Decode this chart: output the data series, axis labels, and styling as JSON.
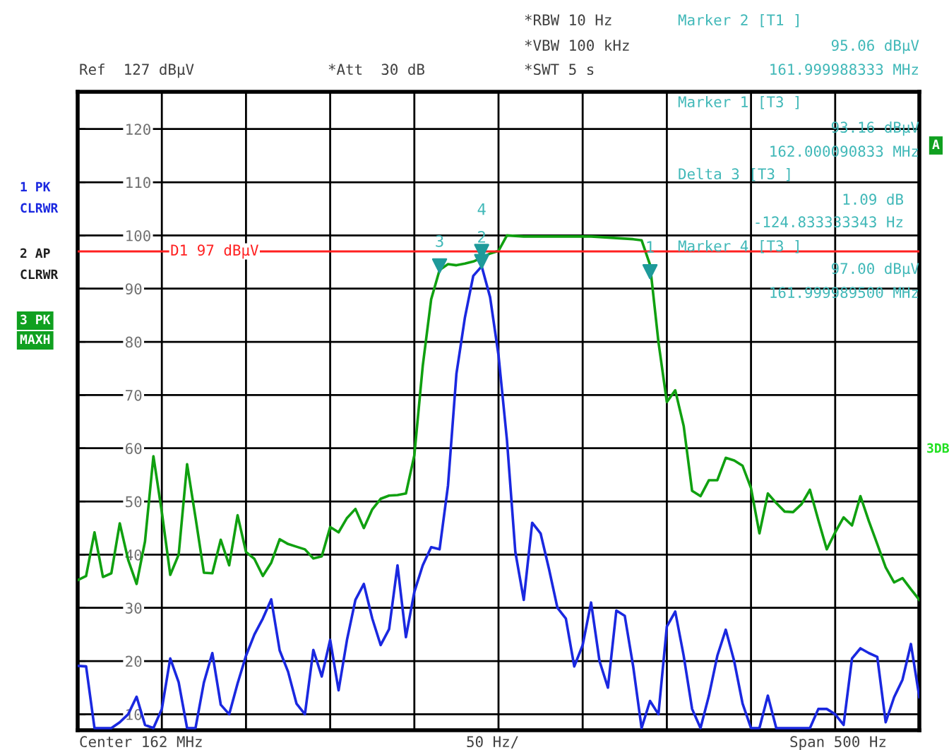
{
  "chart_data": {
    "type": "line",
    "categories": [
      null,
      null,
      null,
      null,
      null,
      null,
      null,
      null,
      null,
      null,
      null,
      null,
      null,
      null,
      null,
      null,
      null,
      null,
      null,
      null,
      null,
      null,
      null,
      null,
      null,
      null,
      null,
      null,
      null,
      null,
      null,
      null,
      null,
      null,
      null,
      null,
      null,
      null,
      null,
      null,
      null,
      null,
      null,
      null,
      null,
      null,
      null,
      null,
      null,
      null,
      null,
      null,
      null,
      null,
      null,
      null,
      null,
      null,
      null,
      null,
      null,
      null,
      null,
      null,
      null,
      null,
      null,
      null,
      null,
      null,
      null,
      null,
      null,
      null,
      null,
      null,
      null,
      null,
      null,
      null,
      null,
      null,
      null,
      null,
      null,
      null,
      null,
      null,
      null,
      null,
      null,
      null,
      null,
      null,
      null,
      null,
      null,
      null,
      null,
      null,
      null
    ],
    "ylim": [
      7,
      127
    ],
    "yticks": [
      10,
      20,
      30,
      40,
      50,
      60,
      70,
      80,
      90,
      100,
      110,
      120
    ],
    "tick_labels": "y",
    "grid": true,
    "legend": false,
    "marker": "none",
    "line_style": "solid",
    "ref_lines": [
      {
        "axis": "y",
        "value": 97,
        "label": "D1 97 dBµV",
        "color": "#ff2020"
      }
    ],
    "series": [
      {
        "color": "#10a010",
        "values": [
          35.2,
          36,
          44.2,
          35.8,
          36.5,
          45.9,
          39,
          34.5,
          42.5,
          58.5,
          48,
          36.2,
          40,
          57,
          47,
          36.6,
          36.5,
          42.8,
          38,
          47.4,
          40.5,
          39.2,
          36,
          38.5,
          42.9,
          42,
          41.5,
          41,
          39.3,
          39.7,
          45.2,
          44.2,
          46.9,
          48.6,
          45,
          48.5,
          50.5,
          51.1,
          51.2,
          51.5,
          58.7,
          75.5,
          88,
          93.5,
          94.6,
          94.4,
          94.7,
          95.1,
          95.8,
          96.6,
          97.1,
          100,
          99.9,
          99.8,
          99.8,
          99.8,
          99.8,
          99.8,
          99.8,
          99.8,
          99.8,
          99.8,
          99.7,
          99.6,
          99.5,
          99.4,
          99.3,
          99.1,
          94.5,
          80,
          68.7,
          70.9,
          64.2,
          52,
          51,
          54,
          54,
          58.2,
          57.7,
          56.7,
          52.5,
          44,
          51.5,
          49.7,
          48.1,
          48,
          49.5,
          52.2,
          46.5,
          41,
          44.2,
          47,
          45.5,
          51,
          46.3,
          42,
          37.6,
          34.8,
          35.6,
          33.5,
          31.5
        ]
      },
      {
        "color": "#1a28e0",
        "values": [
          19.1,
          19,
          7.4,
          7.4,
          7.4,
          8.5,
          10,
          13.3,
          8,
          7.4,
          11,
          20.5,
          16,
          7.4,
          7.4,
          16,
          21.5,
          11.8,
          10,
          15.8,
          21,
          25,
          28,
          31.6,
          22,
          18,
          12,
          10,
          22.1,
          17.1,
          24,
          14.5,
          24,
          31.5,
          34.5,
          28,
          23,
          26,
          38,
          24.5,
          33,
          38,
          41.4,
          41,
          53,
          74,
          84.5,
          92.4,
          94.2,
          88.4,
          77.5,
          61.6,
          40.5,
          31.5,
          46,
          44,
          37.3,
          30,
          28,
          19,
          23,
          31,
          20,
          15,
          29.5,
          28.5,
          19,
          7.4,
          12.5,
          10,
          26.5,
          29.3,
          21,
          11,
          7.4,
          13.5,
          21,
          25.9,
          20,
          12,
          7.4,
          7.4,
          13.5,
          7.4,
          7.4,
          7.4,
          7.4,
          7.4,
          11,
          11,
          10,
          8,
          20.5,
          22.4,
          21.5,
          20.8,
          8.5,
          13.2,
          16.5,
          23.2,
          13.2
        ]
      },
      {
        "type": "scatter",
        "marker": "triangle",
        "color": "#1e9a9a",
        "name": "1",
        "values": [
          null,
          null,
          null,
          null,
          null,
          null,
          null,
          null,
          null,
          null,
          null,
          null,
          null,
          null,
          null,
          null,
          null,
          null,
          null,
          null,
          null,
          null,
          null,
          null,
          null,
          null,
          null,
          null,
          null,
          null,
          null,
          null,
          null,
          null,
          null,
          null,
          null,
          null,
          null,
          null,
          null,
          null,
          null,
          null,
          null,
          null,
          null,
          null,
          null,
          null,
          null,
          null,
          null,
          null,
          null,
          null,
          null,
          null,
          null,
          null,
          null,
          null,
          null,
          null,
          null,
          null,
          null,
          null,
          93.2,
          null,
          null,
          null,
          null,
          null,
          null,
          null,
          null,
          null,
          null,
          null,
          null,
          null,
          null,
          null,
          null,
          null,
          null,
          null,
          null,
          null,
          null,
          null,
          null,
          null,
          null,
          null,
          null,
          null,
          null,
          null,
          null
        ]
      },
      {
        "type": "scatter",
        "marker": "triangle",
        "color": "#1e9a9a",
        "name": "2",
        "values": [
          null,
          null,
          null,
          null,
          null,
          null,
          null,
          null,
          null,
          null,
          null,
          null,
          null,
          null,
          null,
          null,
          null,
          null,
          null,
          null,
          null,
          null,
          null,
          null,
          null,
          null,
          null,
          null,
          null,
          null,
          null,
          null,
          null,
          null,
          null,
          null,
          null,
          null,
          null,
          null,
          null,
          null,
          null,
          null,
          null,
          null,
          null,
          null,
          95.1,
          null,
          null,
          null,
          null,
          null,
          null,
          null,
          null,
          null,
          null,
          null,
          null,
          null,
          null,
          null,
          null,
          null,
          null,
          null,
          null,
          null,
          null,
          null,
          null,
          null,
          null,
          null,
          null,
          null,
          null,
          null,
          null,
          null,
          null,
          null,
          null,
          null,
          null,
          null,
          null,
          null,
          null,
          null,
          null,
          null,
          null,
          null,
          null,
          null,
          null,
          null,
          null
        ]
      },
      {
        "type": "scatter",
        "marker": "triangle",
        "color": "#1e9a9a",
        "name": "3",
        "values": [
          null,
          null,
          null,
          null,
          null,
          null,
          null,
          null,
          null,
          null,
          null,
          null,
          null,
          null,
          null,
          null,
          null,
          null,
          null,
          null,
          null,
          null,
          null,
          null,
          null,
          null,
          null,
          null,
          null,
          null,
          null,
          null,
          null,
          null,
          null,
          null,
          null,
          null,
          null,
          null,
          null,
          null,
          null,
          94.3,
          null,
          null,
          null,
          null,
          null,
          null,
          null,
          null,
          null,
          null,
          null,
          null,
          null,
          null,
          null,
          null,
          null,
          null,
          null,
          null,
          null,
          null,
          null,
          null,
          null,
          null,
          null,
          null,
          null,
          null,
          null,
          null,
          null,
          null,
          null,
          null,
          null,
          null,
          null,
          null,
          null,
          null,
          null,
          null,
          null,
          null,
          null,
          null,
          null,
          null,
          null,
          null,
          null,
          null,
          null,
          null,
          null
        ]
      },
      {
        "type": "scatter",
        "marker": "triangle",
        "color": "#1e9a9a",
        "name": "4",
        "values": [
          null,
          null,
          null,
          null,
          null,
          null,
          null,
          null,
          null,
          null,
          null,
          null,
          null,
          null,
          null,
          null,
          null,
          null,
          null,
          null,
          null,
          null,
          null,
          null,
          null,
          null,
          null,
          null,
          null,
          null,
          null,
          null,
          null,
          null,
          null,
          null,
          null,
          null,
          null,
          null,
          null,
          null,
          null,
          null,
          null,
          null,
          null,
          null,
          97.0,
          null,
          null,
          null,
          null,
          null,
          null,
          null,
          null,
          null,
          null,
          null,
          null,
          null,
          null,
          null,
          null,
          null,
          null,
          null,
          null,
          null,
          null,
          null,
          null,
          null,
          null,
          null,
          null,
          null,
          null,
          null,
          null,
          null,
          null,
          null,
          null,
          null,
          null,
          null,
          null,
          null,
          null,
          null,
          null,
          null,
          null,
          null,
          null,
          null,
          null,
          null,
          null
        ]
      }
    ],
    "annotations": [
      "Ref  127 dBµV",
      "*Att  30 dB",
      "*RBW 10 Hz",
      "*VBW 100 kHz",
      "*SWT 5 s",
      "Marker 2 [T1 ]",
      "95.06 dBµV",
      "161.999988333 MHz",
      "Marker 1 [T3 ]",
      "93.16 dBµV",
      "162.000090833 MHz",
      "Delta 3 [T3 ]",
      "1.09 dB",
      "-124.833333343 Hz",
      "Marker 4 [T3 ]",
      "97.00 dBµV",
      "161.999989500 MHz",
      "1 PK",
      "CLRWR",
      "2 AP",
      "CLRWR",
      "3 PK",
      "MAXH",
      "A",
      "3DB",
      "Center 162 MHz",
      "50 Hz/",
      "Span 500 Hz"
    ]
  }
}
